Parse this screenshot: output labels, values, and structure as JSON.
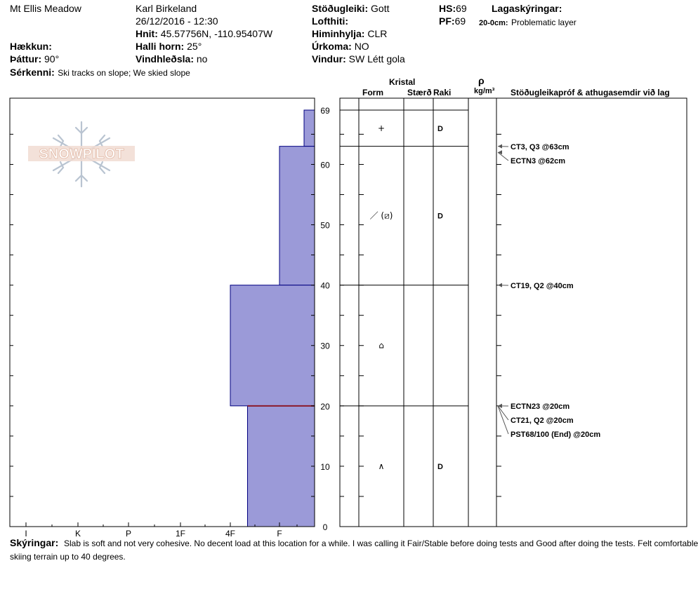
{
  "header": {
    "location": "Mt Ellis Meadow",
    "observer": "Karl Birkeland",
    "datetime": "26/12/2016 - 12:30",
    "coords_label": "Hnit:",
    "coords": "45.57756N, -110.95407W",
    "elevation_label": "Hækkun:",
    "elevation": "",
    "aspect_label": "Þáttur:",
    "aspect": "90°",
    "slope_label": "Halli horn:",
    "slope": "25°",
    "wind_loading_label": "Vindhleðsla:",
    "wind_loading": "no",
    "features_label": "Sérkenni:",
    "features": "Ski tracks on slope; We skied slope",
    "stability_label": "Stöðugleiki:",
    "stability": "Gott",
    "air_temp_label": "Lofthiti:",
    "air_temp": "",
    "sky_label": "Himinhylja:",
    "sky": "CLR",
    "precip_label": "Úrkoma:",
    "precip": "NO",
    "wind_label": "Vindur:",
    "wind": "SW  Létt gola",
    "hs_label": "HS:",
    "hs": "69",
    "pf_label": "PF:",
    "pf": "69",
    "layer_notes_label": "Lagaskýringar:",
    "layer_note_range": "20-0cm:",
    "layer_note_text": "Problematic layer"
  },
  "columns": {
    "crystal": "Kristal",
    "form": "Form",
    "size": "Stærð",
    "moisture": "Raki",
    "density_symbol": "ρ",
    "density_unit": "kg/m³",
    "tests": "Stöðugleikapróf & athugasemdir við lag"
  },
  "logo_text": "SNOWPILOT",
  "footer": {
    "label": "Skýringar:",
    "line1": "Slab is soft and not very cohesive.  No decent load at this location for a while.  I was calling it Fair/Stable before doing tests and Good after doing the tests.  Felt comfortable",
    "line2": "skiing terrain up to 40 degrees."
  },
  "chart_data": {
    "type": "bar",
    "orientation": "horizontal",
    "y_axis": {
      "label": "",
      "range": [
        0,
        69
      ],
      "ticks": [
        "0",
        "10",
        "20",
        "30",
        "40",
        "50",
        "60",
        "69"
      ]
    },
    "hardness_scale": [
      "I",
      "K",
      "P",
      "1F",
      "4F",
      "F"
    ],
    "layers": [
      {
        "top": 69,
        "bottom": 63,
        "hardness": 5.7,
        "form": "+",
        "moisture": "D"
      },
      {
        "top": 63,
        "bottom": 40,
        "hardness": 5.0,
        "form": "／ (⧄)",
        "moisture": "D"
      },
      {
        "top": 40,
        "bottom": 20,
        "hardness": 4.0,
        "form": "⌂",
        "moisture": ""
      },
      {
        "top": 20,
        "bottom": 0,
        "hardness": 4.35,
        "form": "∧",
        "moisture": "D"
      }
    ],
    "tests": [
      {
        "label": "CT3, Q3 @63cm",
        "depth": 63
      },
      {
        "label": "ECTN3 @62cm",
        "depth": 62
      },
      {
        "label": "CT19, Q2 @40cm",
        "depth": 40
      },
      {
        "label": "ECTN23 @20cm",
        "depth": 20
      },
      {
        "label": "CT21, Q2 @20cm",
        "depth": 20
      },
      {
        "label": "PST68/100 (End) @20cm",
        "depth": 20
      }
    ],
    "colors": {
      "fill": "#9b9ad8",
      "stroke": "#000080",
      "problem_line": "#8b1a2b"
    }
  }
}
